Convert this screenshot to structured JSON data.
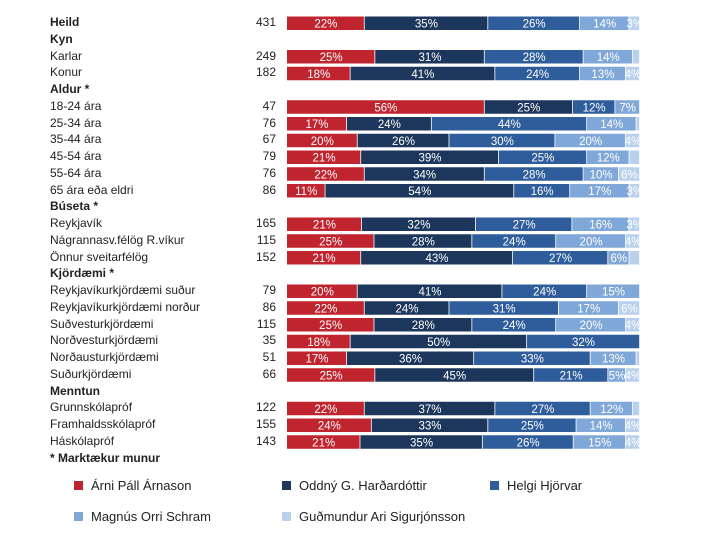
{
  "chart_data": {
    "type": "bar",
    "orientation": "horizontal",
    "stacked": true,
    "legend_position": "bottom",
    "series_names": [
      "Árni Páll Árnason",
      "Oddný G. Harðardóttir",
      "Helgi Hjörvar",
      "Magnús Orri Schram",
      "Guðmundur Ari Sigurjónsson"
    ],
    "colors": [
      "#c0242f",
      "#1c365c",
      "#2f5d9b",
      "#7fa7d7",
      "#b9d1ec"
    ],
    "value_unit": "%",
    "rows": [
      {
        "label": "Heild",
        "header": true,
        "n": "431",
        "values": [
          22,
          35,
          26,
          14,
          3
        ],
        "value_labels": [
          "22%",
          "35%",
          "26%",
          "14%",
          "3%"
        ]
      },
      {
        "label": "Kyn",
        "header": true
      },
      {
        "label": "Karlar",
        "n": "249",
        "values": [
          25,
          31,
          28,
          14,
          2
        ],
        "value_labels": [
          "25%",
          "31%",
          "28%",
          "14%",
          ""
        ]
      },
      {
        "label": "Konur",
        "n": "182",
        "values": [
          18,
          41,
          24,
          13,
          4
        ],
        "value_labels": [
          "18%",
          "41%",
          "24%",
          "13%",
          "4%"
        ]
      },
      {
        "label": "Aldur *",
        "header": true
      },
      {
        "label": "18-24 ára",
        "n": "47",
        "values": [
          56,
          25,
          12,
          7,
          0
        ],
        "value_labels": [
          "56%",
          "25%",
          "12%",
          "7%",
          ""
        ]
      },
      {
        "label": "25-34 ára",
        "n": "76",
        "values": [
          17,
          24,
          44,
          14,
          1
        ],
        "value_labels": [
          "17%",
          "24%",
          "44%",
          "14%",
          ""
        ]
      },
      {
        "label": "35-44 ára",
        "n": "67",
        "values": [
          20,
          26,
          30,
          20,
          4
        ],
        "value_labels": [
          "20%",
          "26%",
          "30%",
          "20%",
          "4%"
        ]
      },
      {
        "label": "45-54 ára",
        "n": "79",
        "values": [
          21,
          39,
          25,
          12,
          3
        ],
        "value_labels": [
          "21%",
          "39%",
          "25%",
          "12%",
          ""
        ]
      },
      {
        "label": "55-64 ára",
        "n": "76",
        "values": [
          22,
          34,
          28,
          10,
          6
        ],
        "value_labels": [
          "22%",
          "34%",
          "28%",
          "10%",
          "6%"
        ]
      },
      {
        "label": "65 ára eða eldri",
        "n": "86",
        "values": [
          11,
          54,
          16,
          17,
          3
        ],
        "value_labels": [
          "11%",
          "54%",
          "16%",
          "17%",
          "3%"
        ]
      },
      {
        "label": "Búseta *",
        "header": true
      },
      {
        "label": "Reykjavík",
        "n": "165",
        "values": [
          21,
          32,
          27,
          16,
          3
        ],
        "value_labels": [
          "21%",
          "32%",
          "27%",
          "16%",
          "3%"
        ]
      },
      {
        "label": "Nágrannasv.félög R.víkur",
        "n": "115",
        "values": [
          25,
          28,
          24,
          20,
          4
        ],
        "value_labels": [
          "25%",
          "28%",
          "24%",
          "20%",
          "4%"
        ]
      },
      {
        "label": "Önnur sveitarfélög",
        "n": "152",
        "values": [
          21,
          43,
          27,
          6,
          3
        ],
        "value_labels": [
          "21%",
          "43%",
          "27%",
          "6%",
          ""
        ]
      },
      {
        "label": "Kjördæmi *",
        "header": true
      },
      {
        "label": "Reykjavíkurkjördæmi suður",
        "n": "79",
        "values": [
          20,
          41,
          24,
          15,
          0
        ],
        "value_labels": [
          "20%",
          "41%",
          "24%",
          "15%",
          ""
        ]
      },
      {
        "label": "Reykjavíkurkjördæmi norður",
        "n": "86",
        "values": [
          22,
          24,
          31,
          17,
          6
        ],
        "value_labels": [
          "22%",
          "24%",
          "31%",
          "17%",
          "6%"
        ]
      },
      {
        "label": "Suðvesturkjördæmi",
        "n": "115",
        "values": [
          25,
          28,
          24,
          20,
          4
        ],
        "value_labels": [
          "25%",
          "28%",
          "24%",
          "20%",
          "4%"
        ]
      },
      {
        "label": "Norðvesturkjördæmi",
        "n": "35",
        "values": [
          18,
          50,
          32,
          0,
          0
        ],
        "value_labels": [
          "18%",
          "50%",
          "32%",
          "",
          ""
        ]
      },
      {
        "label": "Norðausturkjördæmi",
        "n": "51",
        "values": [
          17,
          36,
          33,
          13,
          1
        ],
        "value_labels": [
          "17%",
          "36%",
          "33%",
          "13%",
          ""
        ]
      },
      {
        "label": "Suðurkjördæmi",
        "n": "66",
        "values": [
          25,
          45,
          21,
          5,
          4
        ],
        "value_labels": [
          "25%",
          "45%",
          "21%",
          "5%",
          "4%"
        ]
      },
      {
        "label": "Menntun",
        "header": true
      },
      {
        "label": "Grunnskólapróf",
        "n": "122",
        "values": [
          22,
          37,
          27,
          12,
          2
        ],
        "value_labels": [
          "22%",
          "37%",
          "27%",
          "12%",
          ""
        ]
      },
      {
        "label": "Framhaldsskólapróf",
        "n": "155",
        "values": [
          24,
          33,
          25,
          14,
          4
        ],
        "value_labels": [
          "24%",
          "33%",
          "25%",
          "14%",
          "4%"
        ]
      },
      {
        "label": "Háskólapróf",
        "n": "143",
        "values": [
          21,
          35,
          26,
          15,
          4
        ],
        "value_labels": [
          "21%",
          "35%",
          "26%",
          "15%",
          "4%"
        ]
      }
    ],
    "footnote": "* Marktækur munur"
  }
}
